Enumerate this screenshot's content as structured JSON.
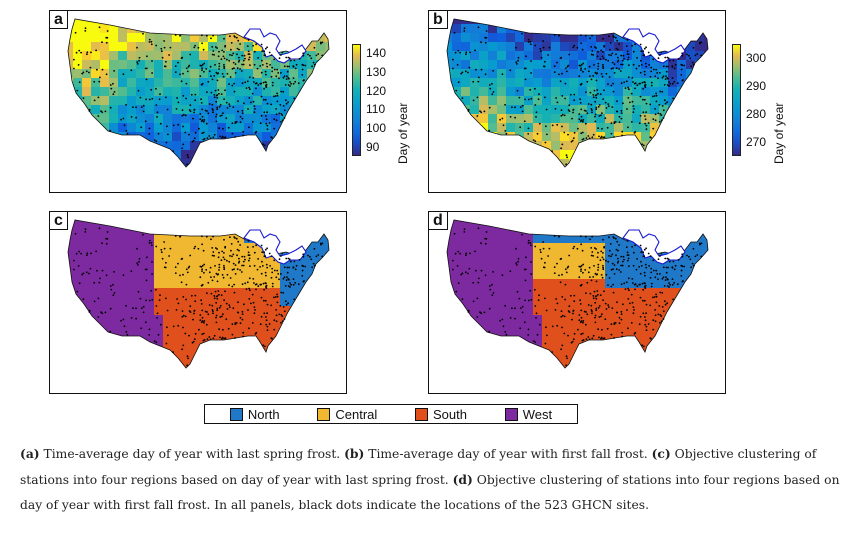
{
  "panels": [
    {
      "letter": "a",
      "map": "spring"
    },
    {
      "letter": "b",
      "map": "fall"
    },
    {
      "letter": "c",
      "map": "cluster-spring"
    },
    {
      "letter": "d",
      "map": "cluster-fall"
    }
  ],
  "colorbar_spring": {
    "title": "Day of year",
    "min": 85,
    "max": 145,
    "ticks": [
      "140",
      "130",
      "120",
      "110",
      "100",
      "90"
    ],
    "tick_values": [
      140,
      130,
      120,
      110,
      100,
      90
    ]
  },
  "colorbar_fall": {
    "title": "Day of year",
    "min": 265,
    "max": 305,
    "ticks": [
      "300",
      "290",
      "280",
      "270"
    ],
    "tick_values": [
      300,
      290,
      280,
      270
    ]
  },
  "colors": {
    "north": "#1f78c8",
    "central": "#f0b830",
    "south": "#e0501c",
    "west": "#7d2aa0",
    "lakes": "#1a1ad0"
  },
  "legend": [
    {
      "label": "North",
      "color": "#1f78c8"
    },
    {
      "label": "Central",
      "color": "#f0b830"
    },
    {
      "label": "South",
      "color": "#e0501c"
    },
    {
      "label": "West",
      "color": "#7d2aa0"
    }
  ],
  "caption": [
    {
      "bold": "(a)",
      "text": " Time-average day of year with last spring frost. "
    },
    {
      "bold": "(b)",
      "text": " Time-average day of year with first fall frost. "
    },
    {
      "bold": "(c)",
      "text": " Objective clustering of stations into four regions based on day of year with last spring frost. "
    },
    {
      "bold": "(d)",
      "text": " Objective clustering of stations into four regions based on day of year with first fall frost. In all panels, black dots indicate the locations of the 523 GHCN sites."
    }
  ]
}
